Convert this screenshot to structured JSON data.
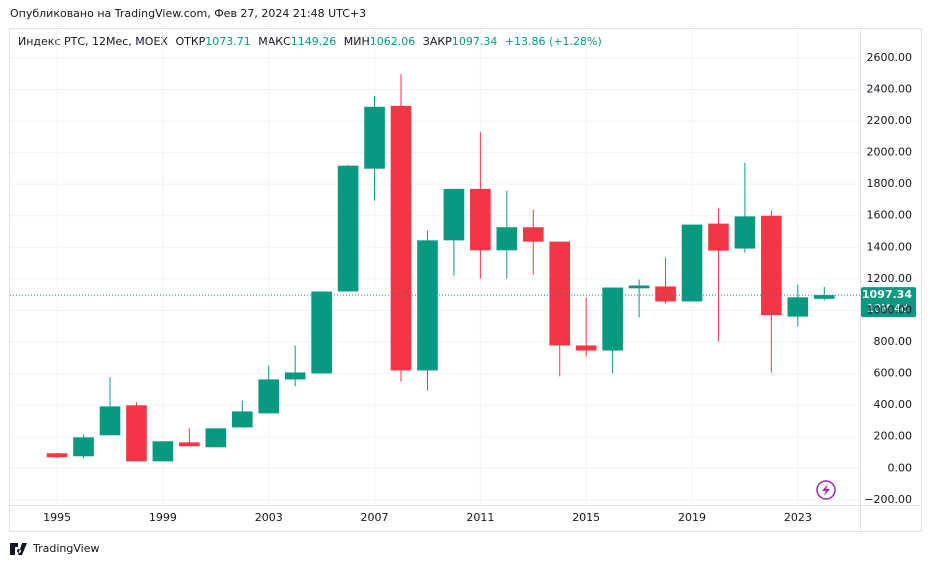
{
  "header": {
    "published": "Опубликовано на TradingView.com, Фев 27, 2024 21:48 UTC+3"
  },
  "legend": {
    "symbol": "Индекс РТС, 12Мес, MOEX",
    "open_label": "ОТКР",
    "open": "1073.71",
    "high_label": "МАКС",
    "high": "1149.26",
    "low_label": "МИН",
    "low": "1062.06",
    "close_label": "ЗАКР",
    "close": "1097.34",
    "change": "+13.86 (+1.28%)"
  },
  "price_label": {
    "price": "1097.34",
    "countdown": "10M 4d"
  },
  "footer": {
    "brand": "TradingView"
  },
  "chart_data": {
    "type": "candlestick",
    "x": [
      1995,
      1996,
      1997,
      1998,
      1999,
      2000,
      2001,
      2002,
      2003,
      2004,
      2005,
      2006,
      2007,
      2008,
      2009,
      2010,
      2011,
      2012,
      2013,
      2014,
      2015,
      2016,
      2017,
      2018,
      2019,
      2020,
      2021,
      2022,
      2023,
      2024
    ],
    "open": [
      95,
      76,
      209,
      399,
      44,
      164,
      133,
      259,
      348,
      563,
      601,
      1120,
      1898,
      2296,
      620,
      1444,
      1770,
      1381,
      1527,
      1436,
      778,
      746,
      1140,
      1152,
      1057,
      1550,
      1392,
      1600,
      961,
      1073.71
    ],
    "high": [
      97,
      215,
      576,
      418,
      171,
      253,
      253,
      430,
      651,
      778,
      1120,
      1923,
      2359,
      2498,
      1506,
      1770,
      2132,
      1758,
      1638,
      1436,
      1082,
      1145,
      1195,
      1335,
      1544,
      1645,
      1935,
      1632,
      1164,
      1149.26
    ],
    "low": [
      65,
      63,
      209,
      44,
      44,
      139,
      133,
      259,
      348,
      519,
      601,
      1120,
      1695,
      550,
      493,
      1221,
      1202,
      1202,
      1227,
      582,
      708,
      601,
      955,
      1044,
      1057,
      803,
      1366,
      607,
      898,
      1062.06
    ],
    "close": [
      70,
      196,
      392,
      44,
      171,
      139,
      253,
      360,
      563,
      607,
      1120,
      1917,
      2290,
      620,
      1444,
      1770,
      1381,
      1527,
      1436,
      778,
      746,
      1145,
      1158,
      1057,
      1544,
      1379,
      1596,
      971,
      1083,
      1097.34
    ],
    "up_color": "#089981",
    "down_color": "#f23645",
    "xlim": [
      1993.22,
      2025.35
    ],
    "xticks": [
      1995,
      1999,
      2003,
      2007,
      2011,
      2015,
      2019,
      2023
    ],
    "ylim": [
      -220,
      2650
    ],
    "yticks": [
      {
        "value": -200,
        "label": "−200.00"
      },
      {
        "value": 0,
        "label": "0.00"
      },
      {
        "value": 200,
        "label": "200.00"
      },
      {
        "value": 400,
        "label": "400.00"
      },
      {
        "value": 600,
        "label": "600.00"
      },
      {
        "value": 800,
        "label": "800.00"
      },
      {
        "value": 1000,
        "label": "1000.00"
      },
      {
        "value": 1200,
        "label": "1200.00"
      },
      {
        "value": 1400,
        "label": "1400.00"
      },
      {
        "value": 1600,
        "label": "1600.00"
      },
      {
        "value": 1800,
        "label": "1800.00"
      },
      {
        "value": 2000,
        "label": "2000.00"
      },
      {
        "value": 2200,
        "label": "2200.00"
      },
      {
        "value": 2400,
        "label": "2400.00"
      },
      {
        "value": 2600,
        "label": "2600.00"
      }
    ],
    "grid": true
  }
}
